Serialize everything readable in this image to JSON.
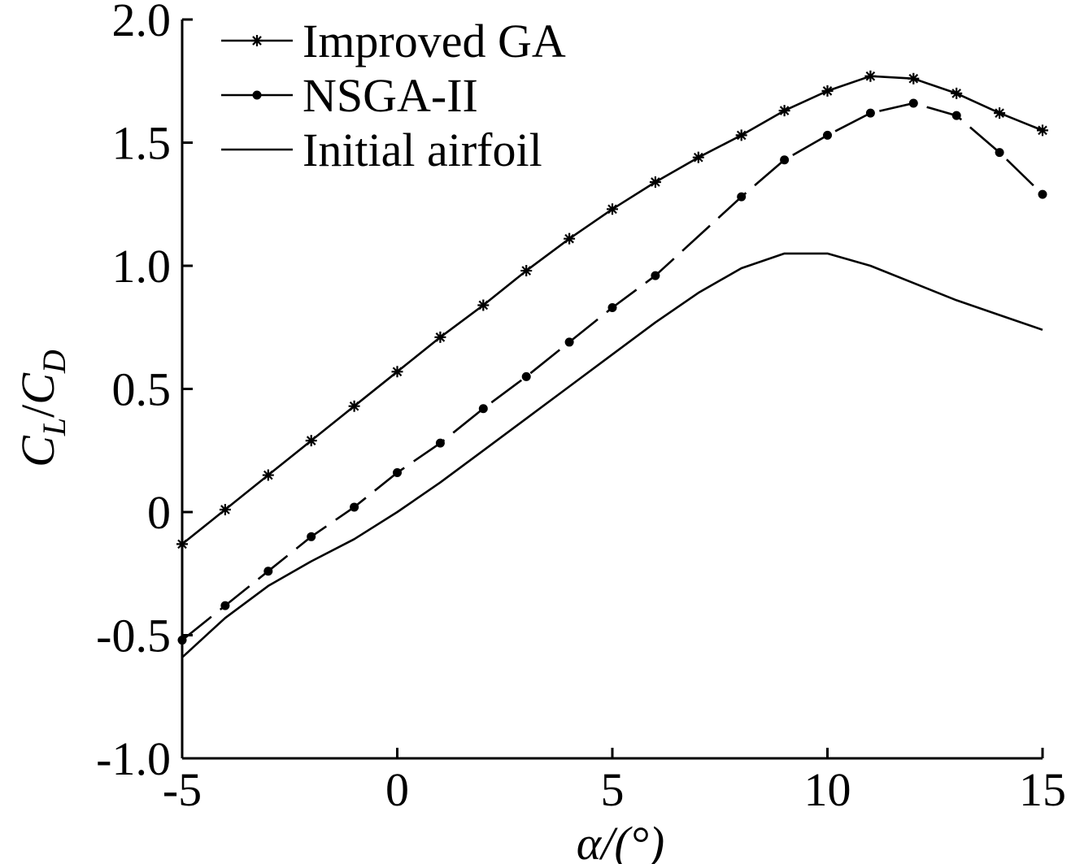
{
  "chart_data": {
    "type": "line",
    "title": "",
    "xlabel": "α/(°)",
    "ylabel": {
      "base1": "C",
      "sub1": "L",
      "slash": "/",
      "base2": "C",
      "sub2": "D"
    },
    "xlim": [
      -5,
      15
    ],
    "ylim": [
      -1.0,
      2.0
    ],
    "x_ticks": [
      -5,
      0,
      5,
      10,
      15
    ],
    "x_tick_labels": [
      "-5",
      "0",
      "5",
      "10",
      "15"
    ],
    "y_ticks": [
      -1.0,
      -0.5,
      0,
      0.5,
      1.0,
      1.5,
      2.0
    ],
    "y_tick_labels": [
      "-1.0",
      "-0.5",
      "0",
      "0.5",
      "1.0",
      "1.5",
      "2.0"
    ],
    "legend_position": "top-left",
    "series": [
      {
        "name": "Improved GA",
        "marker": "star",
        "dash": "solid",
        "x": [
          -5,
          -4,
          -3,
          -2,
          -1,
          0,
          1,
          2,
          3,
          4,
          5,
          6,
          7,
          8,
          9,
          10,
          11,
          12,
          13,
          14,
          15
        ],
        "values": [
          -0.13,
          0.01,
          0.15,
          0.29,
          0.43,
          0.57,
          0.71,
          0.84,
          0.98,
          1.11,
          1.23,
          1.34,
          1.44,
          1.53,
          1.63,
          1.71,
          1.77,
          1.76,
          1.7,
          1.62,
          1.55
        ]
      },
      {
        "name": "NSGA-II",
        "marker": "dot",
        "dash": "long-dash",
        "x": [
          -5,
          -4,
          -3,
          -2,
          -1,
          0,
          1,
          2,
          3,
          4,
          5,
          6,
          8,
          9,
          10,
          11,
          12,
          13,
          14,
          15
        ],
        "values": [
          -0.52,
          -0.38,
          -0.24,
          -0.1,
          0.02,
          0.16,
          0.28,
          0.42,
          0.55,
          0.69,
          0.83,
          0.96,
          1.28,
          1.43,
          1.53,
          1.62,
          1.66,
          1.61,
          1.46,
          1.29
        ]
      },
      {
        "name": "Initial airfoil",
        "marker": "none",
        "dash": "solid",
        "x": [
          -5,
          -4,
          -3,
          -2,
          -1,
          0,
          1,
          2,
          3,
          4,
          5,
          6,
          7,
          8,
          9,
          10,
          11,
          12,
          13,
          14,
          15
        ],
        "values": [
          -0.59,
          -0.43,
          -0.3,
          -0.2,
          -0.11,
          0.0,
          0.12,
          0.25,
          0.38,
          0.51,
          0.64,
          0.77,
          0.89,
          0.99,
          1.05,
          1.05,
          1.0,
          0.93,
          0.86,
          0.8,
          0.74
        ]
      }
    ]
  }
}
